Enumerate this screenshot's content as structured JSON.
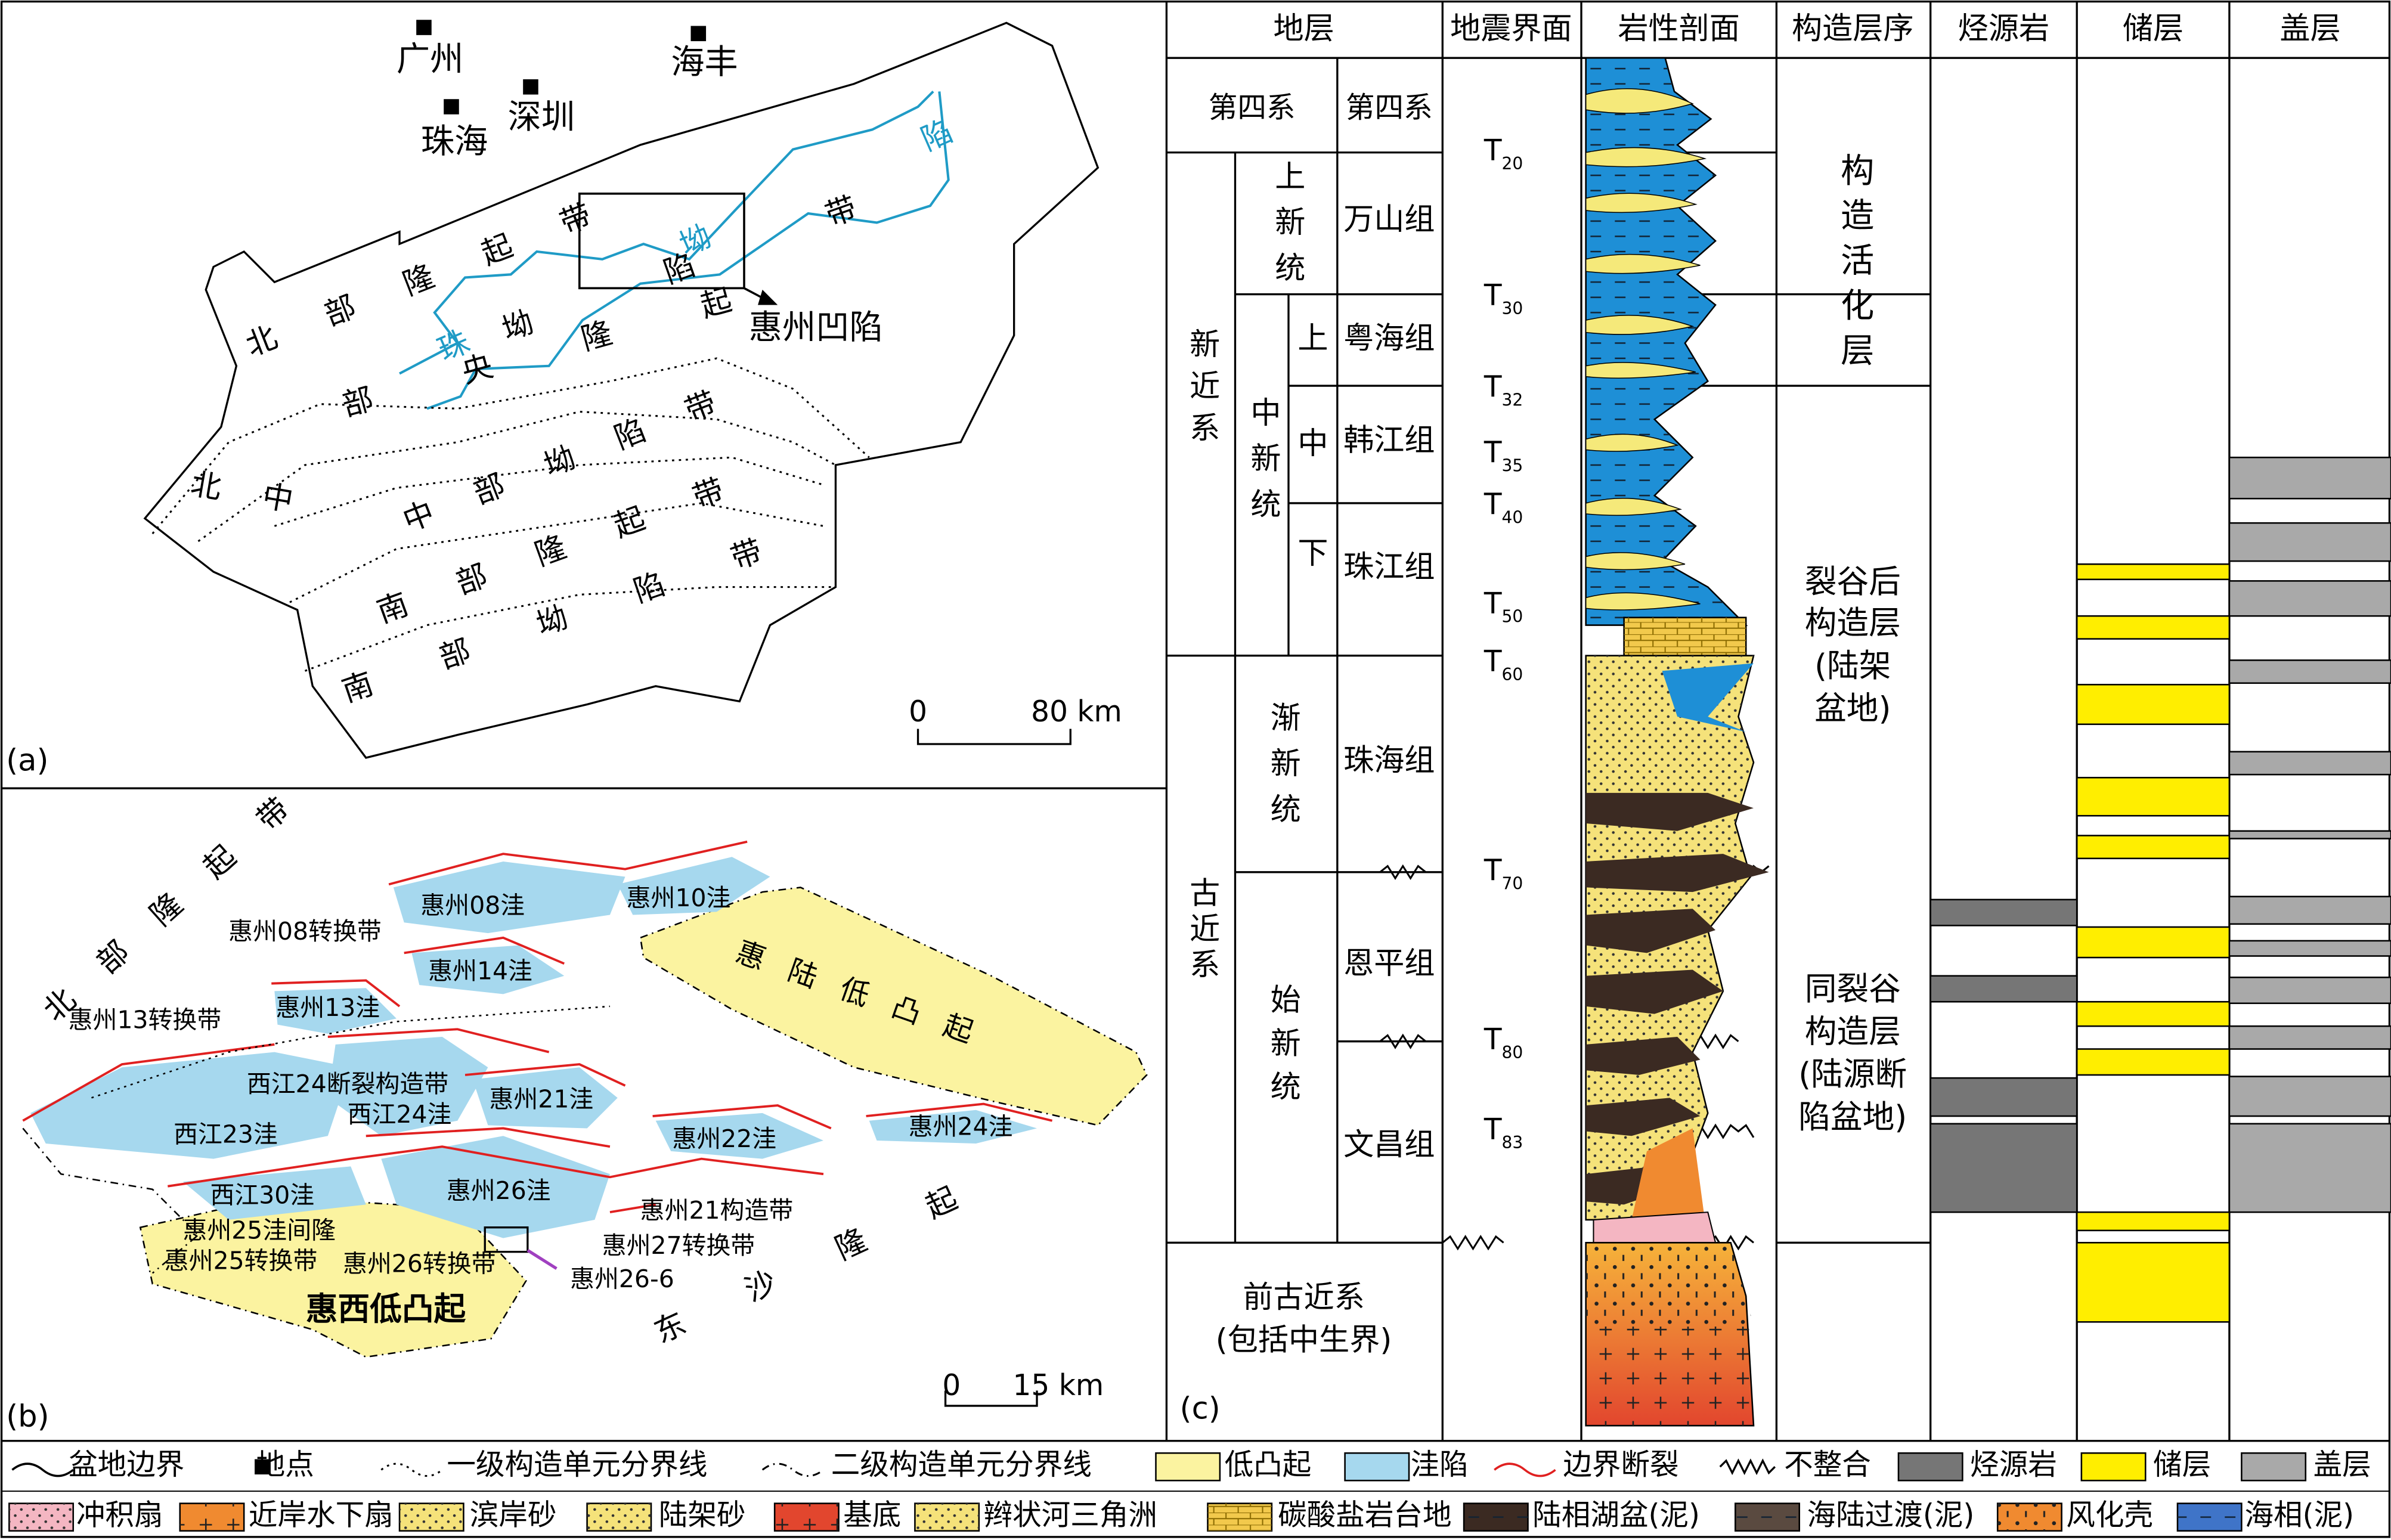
{
  "map_a": {
    "panel_label": "(a)",
    "cities": [
      "广州",
      "海丰",
      "珠海",
      "深圳"
    ],
    "units": [
      "北部隆起带",
      "珠坳陷",
      "坳陷带",
      "部央隆起",
      "北中",
      "中部坳陷带",
      "南部隆起带",
      "南部坳陷带"
    ],
    "depression": "惠州凹陷",
    "scale": [
      "0",
      "80 km"
    ]
  },
  "map_b": {
    "panel_label": "(b)",
    "labels": [
      "北部隆起带",
      "惠州08转换带",
      "惠州13转换带",
      "惠州08洼",
      "惠州10洼",
      "惠州14洼",
      "惠州13洼",
      "惠陆低凸起",
      "西江24断裂构造带",
      "西江24洼",
      "西江23洼",
      "惠州21洼",
      "惠州22洼",
      "惠州24洼",
      "西江30洼",
      "惠州26洼",
      "惠州21构造带",
      "惠州25洼间隆",
      "惠州27转换带",
      "惠州25转换带",
      "惠州26转换带",
      "惠州26-6",
      "惠西低凸起",
      "东沙隆起"
    ],
    "scale": [
      "0",
      "15 km"
    ]
  },
  "column": {
    "panel_label": "(c)",
    "headers": [
      "地层",
      "地震界面",
      "岩性剖面",
      "构造层序",
      "烃源岩",
      "储层",
      "盖层"
    ],
    "quaternary": [
      "第四系",
      "第四系"
    ],
    "systems": [
      "新近系",
      "古近系"
    ],
    "series": [
      "上新统",
      "中新统",
      "渐新统",
      "始新统"
    ],
    "substages": [
      "上",
      "中",
      "下"
    ],
    "formations": [
      "万山组",
      "粤海组",
      "韩江组",
      "珠江组",
      "珠海组",
      "恩平组",
      "文昌组"
    ],
    "pre_paleogene": [
      "前古近系",
      "(包括中生界)"
    ],
    "horizons": [
      {
        "main": "T",
        "sub": "20"
      },
      {
        "main": "T",
        "sub": "30"
      },
      {
        "main": "T",
        "sub": "32"
      },
      {
        "main": "T",
        "sub": "35"
      },
      {
        "main": "T",
        "sub": "40"
      },
      {
        "main": "T",
        "sub": "50"
      },
      {
        "main": "T",
        "sub": "60"
      },
      {
        "main": "T",
        "sub": "70"
      },
      {
        "main": "T",
        "sub": "80"
      },
      {
        "main": "T",
        "sub": "83"
      }
    ],
    "sequences": [
      [
        "构造活化层"
      ],
      [
        "裂谷后",
        "构造层",
        "(陆架",
        "盆地)"
      ],
      [
        "同裂谷",
        "构造层",
        "(陆源断",
        "陷盆地)"
      ]
    ]
  },
  "legend": [
    "盆地边界",
    "地点",
    "一级构造单元分界线",
    "二级构造单元分界线",
    "低凸起",
    "洼陷",
    "边界断裂",
    "不整合",
    "烃源岩",
    "储层",
    "盖层",
    "冲积扇",
    "近岸水下扇",
    "滨岸砂",
    "陆架砂",
    "基底",
    "辫状河三角洲",
    "碳酸盐岩台地",
    "陆相湖盆(泥)",
    "海陆过渡(泥)",
    "风化壳",
    "海相(泥)"
  ]
}
